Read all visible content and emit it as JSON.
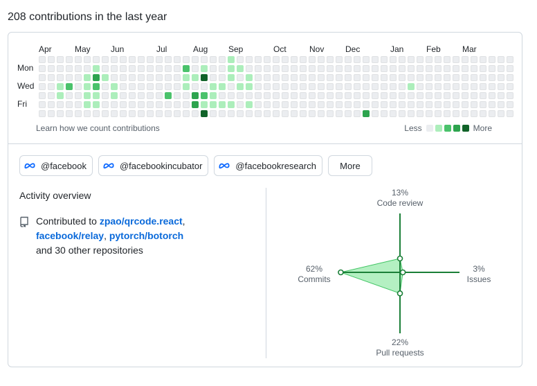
{
  "heading": "208 contributions in the last year",
  "graph": {
    "months": [
      "Apr",
      "May",
      "Jun",
      "Jul",
      "Aug",
      "Sep",
      "Oct",
      "Nov",
      "Dec",
      "Jan",
      "Feb",
      "Mar"
    ],
    "weekdays": [
      "Mon",
      "Wed",
      "Fri"
    ],
    "learn_link": "Learn how we count contributions",
    "legend_less": "Less",
    "legend_more": "More",
    "colors": [
      "#ebedf0",
      "#aceebb",
      "#4ac26b",
      "#2da44e",
      "#116329"
    ],
    "weeks": [
      "0000000",
      "0000000",
      "0001100",
      "0002000",
      "0000000",
      "0011110",
      "0132110",
      "0010000",
      "0001100",
      "0000000",
      "0000000",
      "0000000",
      "0000000",
      "0000000",
      "0000200",
      "0000000",
      "0211000",
      "0010330",
      "0140214",
      "0001110",
      "0001010",
      "1110010",
      "0101000",
      "0011010",
      "0000000",
      "0000000",
      "0000000",
      "0000000",
      "0000000",
      "0000000",
      "0000000",
      "0000000",
      "0000000",
      "0000000",
      "0000000",
      "0000000",
      "0000003",
      "0000000",
      "0000000",
      "0000000",
      "0000000",
      "0001000",
      "0000000",
      "0000000",
      "0000000",
      "0000000",
      "0000000",
      "0000000",
      "0000000",
      "0000000",
      "0000000",
      "0000000",
      "0000000"
    ]
  },
  "orgs": [
    "@facebook",
    "@facebookincubator",
    "@facebookresearch"
  ],
  "more_button": "More",
  "overview": {
    "title": "Activity overview",
    "prefix": "Contributed to ",
    "repo1": "zpao/qrcode.react",
    "repo2": "facebook/relay",
    "repo3": "pytorch/botorch",
    "suffix": "and 30 other repositories"
  },
  "activity": {
    "code_review": {
      "percent": 13,
      "percent_label": "13%",
      "label": "Code review"
    },
    "issues": {
      "percent": 3,
      "percent_label": "3%",
      "label": "Issues"
    },
    "pull_requests": {
      "percent": 22,
      "percent_label": "22%",
      "label": "Pull requests"
    },
    "commits": {
      "percent": 62,
      "percent_label": "62%",
      "label": "Commits"
    }
  }
}
